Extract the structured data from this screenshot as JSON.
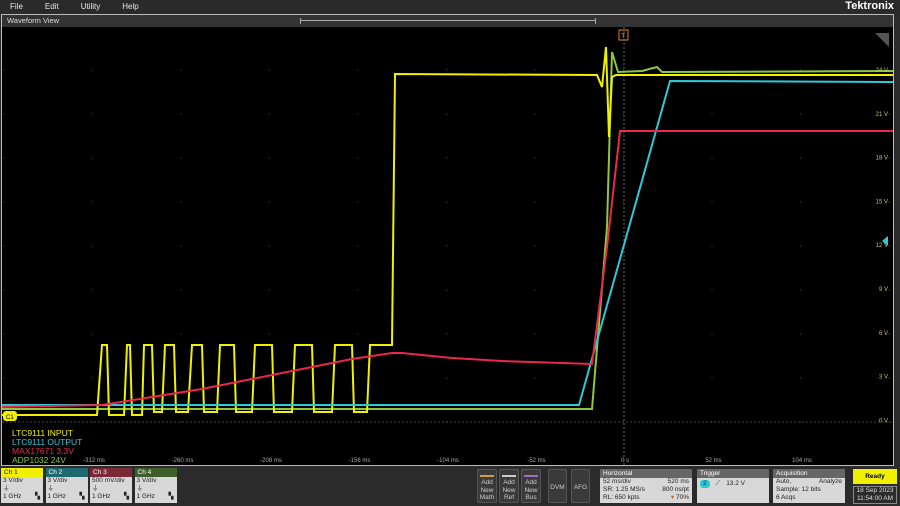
{
  "menu": [
    "File",
    "Edit",
    "Utility",
    "Help"
  ],
  "brand": "Tektronix",
  "view": {
    "title": "Waveform View"
  },
  "y_ticks": [
    "24 V",
    "21 V",
    "18 V",
    "15 V",
    "12 V",
    "9 V",
    "6 V",
    "3 V",
    "0 V"
  ],
  "x_ticks": [
    "-312 ms",
    "-260 ms",
    "-208 ms",
    "-156 ms",
    "-104 ms",
    "-52 ms",
    "0 s",
    "52 ms",
    "104 ms"
  ],
  "ground_marker": "C1",
  "trigger_marker": "T",
  "legend": [
    {
      "label": "LTC9111 INPUT",
      "color": "#f0f000"
    },
    {
      "label": "LTC9111 OUTPUT",
      "color": "#2fc8d8"
    },
    {
      "label": "MAX17671 3.3V",
      "color": "#e8284c"
    },
    {
      "label": "ADP1032 24V",
      "color": "#8cc83c"
    }
  ],
  "channels": [
    {
      "name": "Ch 1",
      "scale": "3 V/div",
      "bw": "1 GHz",
      "color": "#f0f000",
      "text": "#222"
    },
    {
      "name": "Ch 2",
      "scale": "3 V/div",
      "bw": "1 GHz",
      "color": "#1f6a70",
      "text": "#fff"
    },
    {
      "name": "Ch 3",
      "scale": "500 mV/div",
      "bw": "1 GHz",
      "color": "#7a2a36",
      "text": "#fff"
    },
    {
      "name": "Ch 4",
      "scale": "3 V/div",
      "bw": "1 GHz",
      "color": "#3f5f2a",
      "text": "#fff"
    }
  ],
  "buttons": {
    "math": "Add New Math",
    "ref": "Add New Ref",
    "bus": "Add New Bus",
    "dvm": "DVM",
    "afg": "AFG"
  },
  "horizontal": {
    "title": "Horizontal",
    "scale": "52 ms/div",
    "record_time": "520 ms",
    "sr": "SR: 1.25 MS/s",
    "res": "800 ns/pt",
    "rl": "RL: 650 kpts",
    "position": "70%"
  },
  "trigger": {
    "title": "Trigger",
    "source": "2",
    "level": "13.2 V"
  },
  "acquisition": {
    "title": "Acquisition",
    "mode": "Auto,",
    "analyze": "Analyze",
    "sample": "Sample: 12 bits",
    "acqs": "6 Acqs"
  },
  "status": "Ready",
  "date": "18 Sep 2023",
  "time": "11:54:00 AM"
}
